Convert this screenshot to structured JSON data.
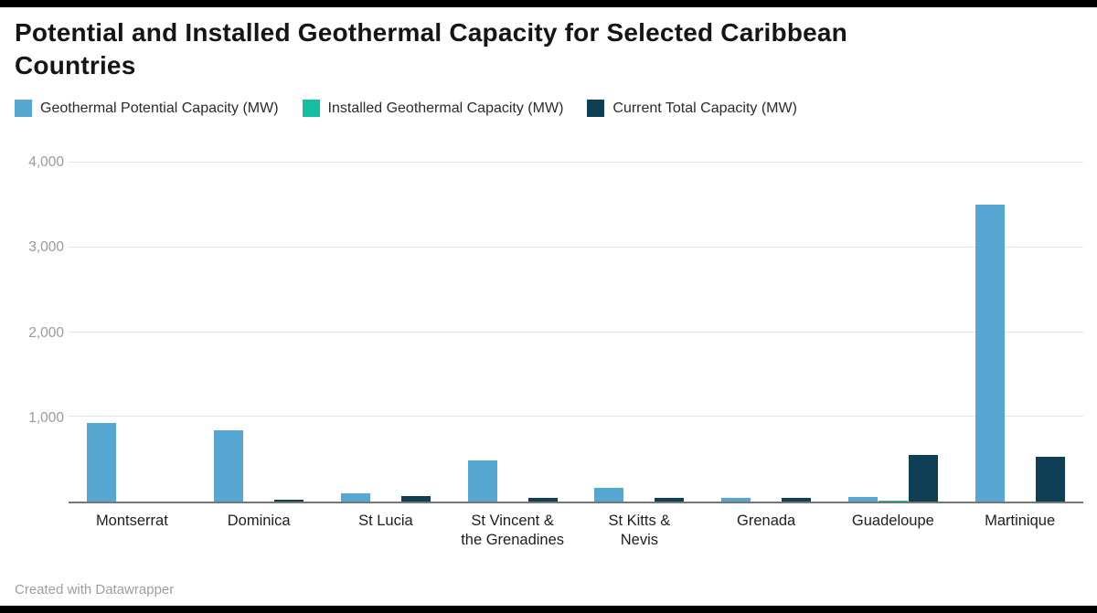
{
  "header": {
    "title": "Potential and Installed Geothermal Capacity for Selected Caribbean Countries"
  },
  "footer": {
    "credit": "Created with Datawrapper"
  },
  "colors": {
    "potential_blue": "#56A8D3",
    "installed_teal": "#15BDA3",
    "current_navy": "#0E3F54",
    "gridline": "#e4e4e4",
    "axis_line": "#767676",
    "tick_text": "#9a9a9a",
    "title_text": "#151515",
    "edge_bar": "#000000"
  },
  "chart_data": {
    "type": "bar",
    "title": "Potential and Installed Geothermal Capacity for Selected Caribbean Countries",
    "categories": [
      "Montserrat",
      "Dominica",
      "St Lucia",
      "St Vincent &\nthe Grenadines",
      "St Kitts &\nNevis",
      "Grenada",
      "Guadeloupe",
      "Martinique"
    ],
    "series": [
      {
        "name": "Geothermal Potential Capacity (MW)",
        "color": "#56A8D3",
        "values": [
          930,
          840,
          95,
          490,
          160,
          45,
          55,
          3500
        ]
      },
      {
        "name": "Installed Geothermal Capacity (MW)",
        "color": "#15BDA3",
        "values": [
          0,
          0,
          0,
          0,
          0,
          0,
          15,
          0
        ]
      },
      {
        "name": "Current Total Capacity (MW)",
        "color": "#0E3F54",
        "values": [
          0,
          27,
          70,
          40,
          45,
          40,
          550,
          530
        ]
      }
    ],
    "xlabel": "",
    "ylabel": "",
    "ylim": [
      0,
      4000
    ],
    "yticks": [
      1000,
      2000,
      3000,
      4000
    ],
    "ytick_labels": [
      "1,000",
      "2,000",
      "3,000",
      "4,000"
    ],
    "grid": true,
    "legend_position": "top"
  }
}
